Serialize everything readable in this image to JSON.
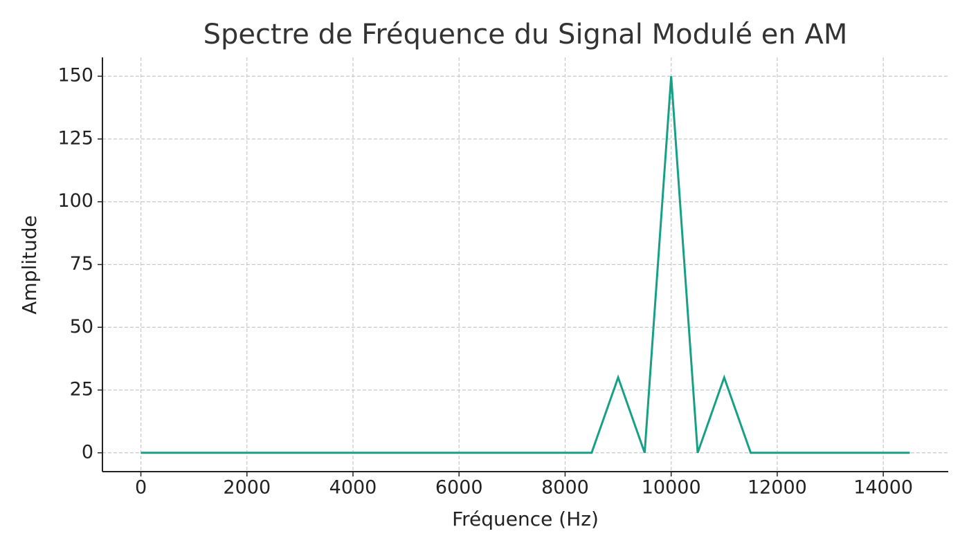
{
  "chart_data": {
    "type": "line",
    "title": "Spectre de Fréquence du Signal Modulé en AM",
    "x_label": "Fréquence (Hz)",
    "y_label": "Amplitude",
    "x": [
      0,
      500,
      1000,
      1500,
      2000,
      2500,
      3000,
      3500,
      4000,
      4500,
      5000,
      5500,
      6000,
      6500,
      7000,
      7500,
      8000,
      8500,
      9000,
      9500,
      10000,
      10500,
      11000,
      11500,
      12000,
      12500,
      13000,
      13500,
      14000,
      14500
    ],
    "series": [
      {
        "color": "#16a085",
        "values": [
          0,
          0,
          0,
          0,
          0,
          0,
          0,
          0,
          0,
          0,
          0,
          0,
          0,
          0,
          0,
          0,
          0,
          0,
          30,
          0,
          150,
          0,
          30,
          0,
          0,
          0,
          0,
          0,
          0,
          0
        ]
      }
    ],
    "xlim": [
      -725,
      15225
    ],
    "ylim": [
      -7.5,
      157.5
    ],
    "xticks": [
      0,
      2000,
      4000,
      6000,
      8000,
      10000,
      12000,
      14000
    ],
    "yticks": [
      0,
      25,
      50,
      75,
      100,
      125,
      150
    ],
    "grid": true
  }
}
